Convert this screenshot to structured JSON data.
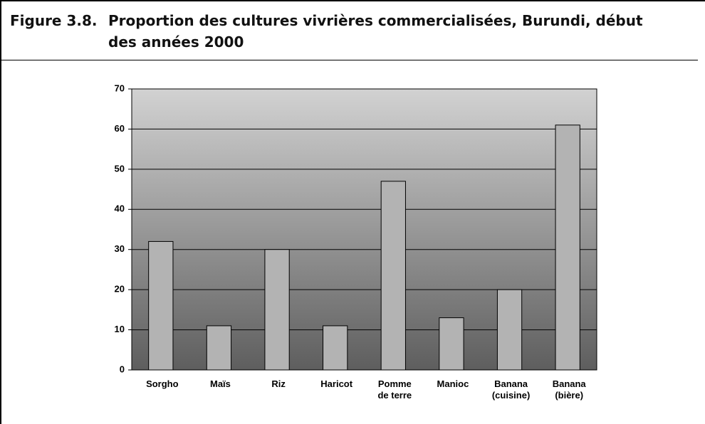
{
  "chart_data": {
    "type": "bar",
    "figure_label": "Figure 3.8.",
    "title": "Proportion des cultures vivrières commercialisées, Burundi, début des années 2000",
    "categories": [
      "Sorgho",
      "Maïs",
      "Riz",
      "Haricot",
      "Pomme\nde terre",
      "Manioc",
      "Banana\n(cuisine)",
      "Banana\n(bière)"
    ],
    "values": [
      32,
      11,
      30,
      11,
      47,
      13,
      20,
      61
    ],
    "color": "#b3b3b3",
    "ylim": [
      0,
      70
    ],
    "yticks": [
      0,
      10,
      20,
      30,
      40,
      50,
      60,
      70
    ],
    "grid": true
  }
}
